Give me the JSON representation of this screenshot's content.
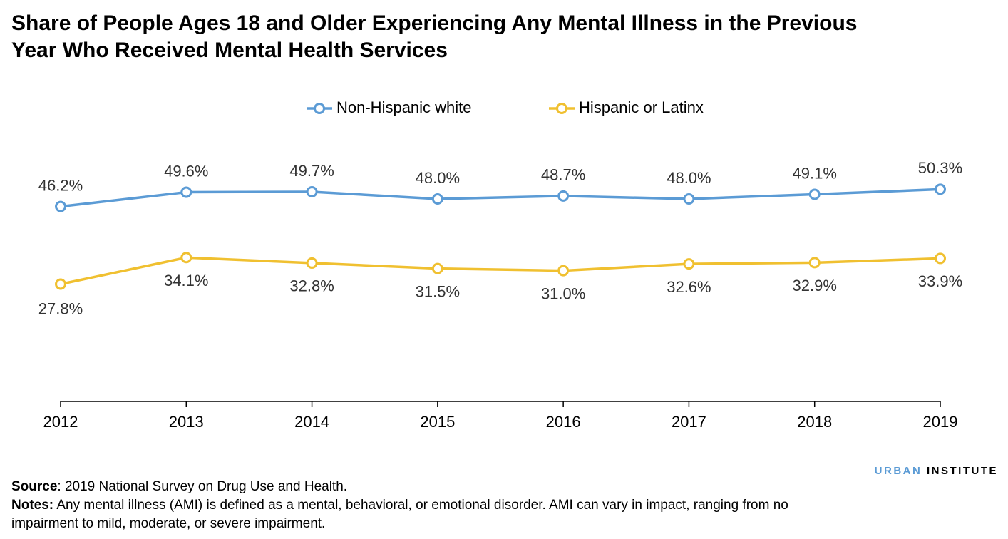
{
  "chart_data": {
    "type": "line",
    "title": [
      "Share of People Ages 18 and Older Experiencing Any Mental Illness in the Previous",
      "Year Who Received Mental Health Services"
    ],
    "categories": [
      "2012",
      "2013",
      "2014",
      "2015",
      "2016",
      "2017",
      "2018",
      "2019"
    ],
    "series": [
      {
        "name": "Non-Hispanic white",
        "color": "#5b9bd5",
        "label_position": "above",
        "values": [
          46.2,
          49.6,
          49.7,
          48.0,
          48.7,
          48.0,
          49.1,
          50.3
        ],
        "value_labels": [
          "46.2%",
          "49.6%",
          "49.7%",
          "48.0%",
          "48.7%",
          "48.0%",
          "49.1%",
          "50.3%"
        ]
      },
      {
        "name": "Hispanic or Latinx",
        "color": "#f0c030",
        "label_position": "below",
        "values": [
          27.8,
          34.1,
          32.8,
          31.5,
          31.0,
          32.6,
          32.9,
          33.9
        ],
        "value_labels": [
          "27.8%",
          "34.1%",
          "32.8%",
          "31.5%",
          "31.0%",
          "32.6%",
          "32.9%",
          "33.9%"
        ]
      }
    ],
    "ylim": [
      0,
      60
    ],
    "legend": "top"
  },
  "footer": {
    "source_label": "Source",
    "source_text": ": 2019 National Survey on Drug Use and Health.",
    "notes_label": "Notes:",
    "notes_text": " Any mental illness (AMI) is defined as a mental, behavioral, or emotional disorder. AMI can vary in impact, ranging from no impairment to mild, moderate, or severe impairment.",
    "brand_1": "URBAN",
    "brand_2": "INSTITUTE"
  }
}
